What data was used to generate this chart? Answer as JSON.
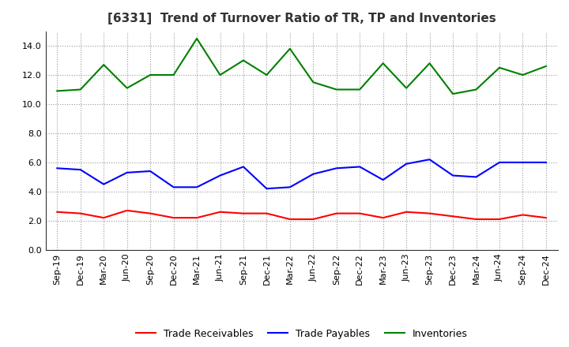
{
  "title": "[6331]  Trend of Turnover Ratio of TR, TP and Inventories",
  "ylim": [
    0.0,
    15.0
  ],
  "yticks": [
    0.0,
    2.0,
    4.0,
    6.0,
    8.0,
    10.0,
    12.0,
    14.0
  ],
  "categories": [
    "Sep-19",
    "Dec-19",
    "Mar-20",
    "Jun-20",
    "Sep-20",
    "Dec-20",
    "Mar-21",
    "Jun-21",
    "Sep-21",
    "Dec-21",
    "Mar-22",
    "Jun-22",
    "Sep-22",
    "Dec-22",
    "Mar-23",
    "Jun-23",
    "Sep-23",
    "Dec-23",
    "Mar-24",
    "Jun-24",
    "Sep-24",
    "Dec-24"
  ],
  "trade_receivables": [
    2.6,
    2.5,
    2.2,
    2.7,
    2.5,
    2.2,
    2.2,
    2.6,
    2.5,
    2.5,
    2.1,
    2.1,
    2.5,
    2.5,
    2.2,
    2.6,
    2.5,
    2.3,
    2.1,
    2.1,
    2.4,
    2.2
  ],
  "trade_payables": [
    5.6,
    5.5,
    4.5,
    5.3,
    5.4,
    4.3,
    4.3,
    5.1,
    5.7,
    4.2,
    4.3,
    5.2,
    5.6,
    5.7,
    4.8,
    5.9,
    6.2,
    5.1,
    5.0,
    6.0,
    6.0,
    6.0
  ],
  "inventories": [
    10.9,
    11.0,
    12.7,
    11.1,
    12.0,
    12.0,
    14.5,
    12.0,
    13.0,
    12.0,
    13.8,
    11.5,
    11.0,
    11.0,
    12.8,
    11.1,
    12.8,
    10.7,
    11.0,
    12.5,
    12.0,
    12.6
  ],
  "tr_color": "#ff0000",
  "tp_color": "#0000ff",
  "inv_color": "#008000",
  "background_color": "#ffffff",
  "grid_color": "#999999",
  "title_fontsize": 11,
  "title_color": "#333333",
  "tick_fontsize": 8,
  "legend_labels": [
    "Trade Receivables",
    "Trade Payables",
    "Inventories"
  ],
  "legend_fontsize": 9,
  "line_width": 1.5
}
